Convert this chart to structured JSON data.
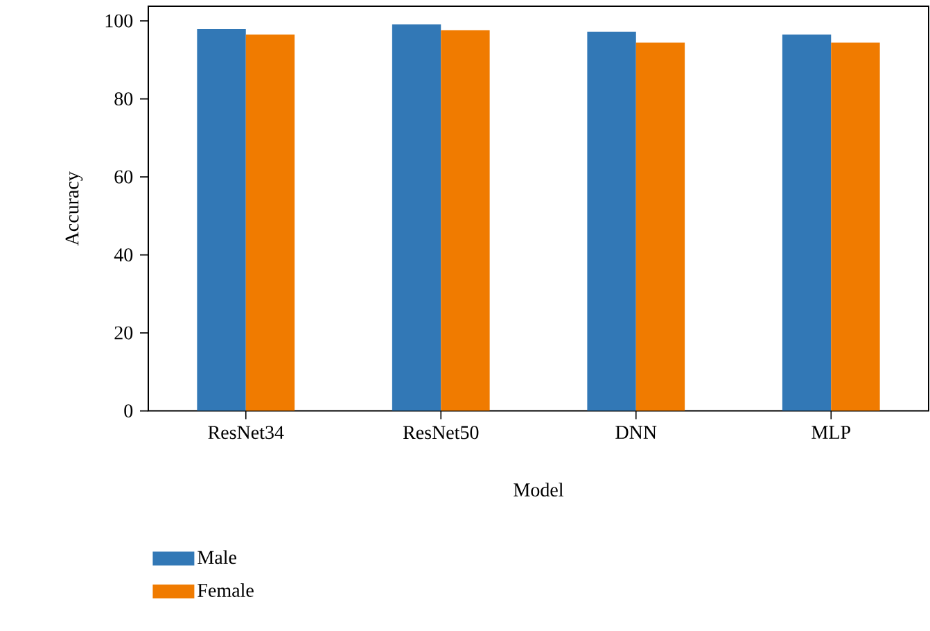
{
  "chart_data": {
    "type": "bar",
    "xlabel": "Model",
    "ylabel": "Accuracy",
    "categories": [
      "ResNet34",
      "ResNet50",
      "DNN",
      "MLP"
    ],
    "series": [
      {
        "name": "Male",
        "color": "#3278b6",
        "values": [
          97.9,
          99.1,
          97.2,
          96.5
        ]
      },
      {
        "name": "Female",
        "color": "#f07b00",
        "values": [
          96.5,
          97.6,
          94.4,
          94.4
        ]
      }
    ],
    "ylim": [
      0,
      103.75
    ],
    "yticks": [
      0,
      20,
      40,
      60,
      80,
      100
    ],
    "legend": "bottom left"
  }
}
